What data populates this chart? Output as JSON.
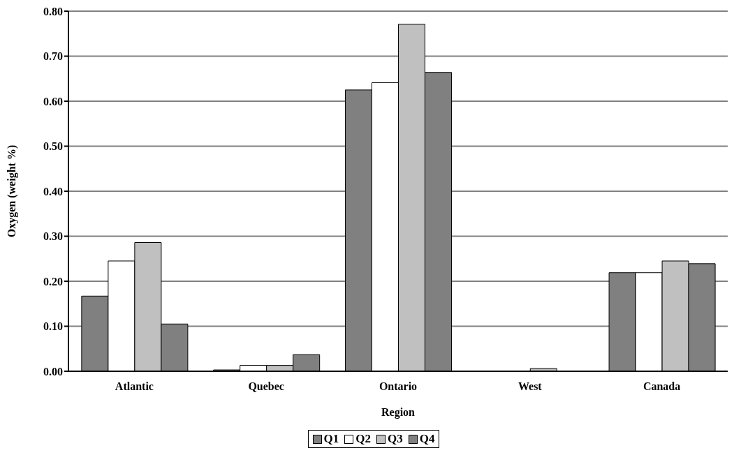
{
  "chart_data": {
    "type": "bar",
    "xlabel": "Region",
    "ylabel": "Oxygen (weight %)",
    "categories": [
      "Atlantic",
      "Quebec",
      "Ontario",
      "West",
      "Canada"
    ],
    "series": [
      {
        "name": "Q1",
        "color": "#808080",
        "values": [
          0.167,
          0.003,
          0.625,
          0,
          0.219
        ]
      },
      {
        "name": "Q2",
        "color": "#ffffff",
        "values": [
          0.245,
          0.013,
          0.641,
          0,
          0.219
        ]
      },
      {
        "name": "Q3",
        "color": "#c0c0c0",
        "values": [
          0.286,
          0.013,
          0.771,
          0.006,
          0.245
        ]
      },
      {
        "name": "Q4",
        "color": "#808080",
        "values": [
          0.105,
          0.037,
          0.664,
          0,
          0.239
        ]
      }
    ],
    "ylim": [
      0,
      0.8
    ],
    "yticks": [
      {
        "value": 0,
        "label": "0.00"
      },
      {
        "value": 0.1,
        "label": "0.10"
      },
      {
        "value": 0.2,
        "label": "0.20"
      },
      {
        "value": 0.3,
        "label": "0.30"
      },
      {
        "value": 0.4,
        "label": "0.40"
      },
      {
        "value": 0.5,
        "label": "0.50"
      },
      {
        "value": 0.6,
        "label": "0.60"
      },
      {
        "value": 0.7,
        "label": "0.70"
      },
      {
        "value": 0.8,
        "label": "0.80"
      }
    ],
    "grid": "y",
    "legend": "bottom"
  }
}
